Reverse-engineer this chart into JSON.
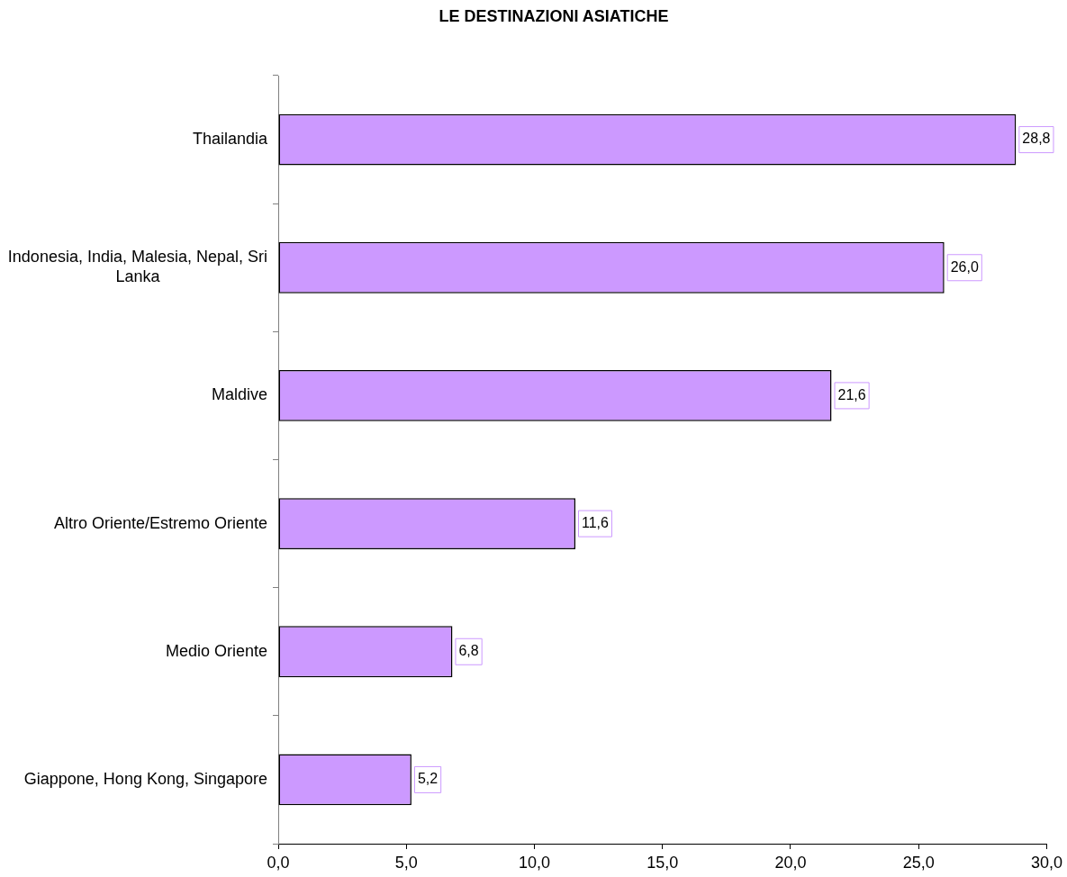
{
  "chart_data": {
    "type": "bar",
    "title": "LE DESTINAZIONI ASIATICHE",
    "orientation": "horizontal",
    "categories": [
      "Thailandia",
      "Indonesia, India, Malesia, Nepal, Sri Lanka",
      "Maldive",
      "Altro Oriente/Estremo Oriente",
      "Medio Oriente",
      "Giappone, Hong Kong, Singapore"
    ],
    "values": [
      28.8,
      26.0,
      21.6,
      11.6,
      6.8,
      5.2
    ],
    "value_labels": [
      "28,8",
      "26,0",
      "21,6",
      "11,6",
      "6,8",
      "5,2"
    ],
    "color": "#cc99ff",
    "xlim": [
      0,
      30
    ],
    "xticks": [
      {
        "value": 0,
        "label": "0,0"
      },
      {
        "value": 5,
        "label": "5,0"
      },
      {
        "value": 10,
        "label": "10,0"
      },
      {
        "value": 15,
        "label": "15,0"
      },
      {
        "value": 20,
        "label": "20,0"
      },
      {
        "value": 25,
        "label": "25,0"
      },
      {
        "value": 30,
        "label": "30,0"
      }
    ],
    "grid": false
  }
}
